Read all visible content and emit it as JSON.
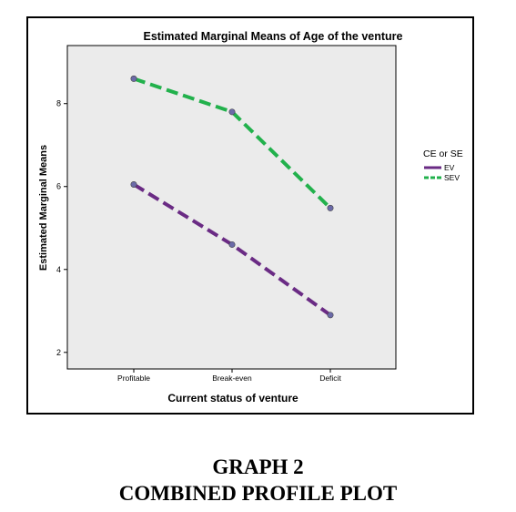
{
  "chart_data": {
    "type": "line",
    "title": "Estimated Marginal Means of Age of the venture",
    "xlabel": "Current status of venture",
    "ylabel": "Estimated Marginal Means",
    "categories": [
      "Profitable",
      "Break-even",
      "Deficit"
    ],
    "ylim": [
      1.6,
      9.4
    ],
    "yticks": [
      2,
      4,
      6,
      8
    ],
    "grid": false,
    "legend_title": "CE or SE",
    "legend_position": "right",
    "series": [
      {
        "name": "EV",
        "values": [
          6.05,
          4.6,
          2.9
        ],
        "color": "#6a2b84",
        "dash": "dashed"
      },
      {
        "name": "SEV",
        "values": [
          8.6,
          7.8,
          5.48
        ],
        "color": "#22b14c",
        "dash": "dashed"
      }
    ],
    "plot_background": "#ebebeb"
  },
  "caption": {
    "line1": "GRAPH 2",
    "line2": "COMBINED PROFILE PLOT"
  }
}
